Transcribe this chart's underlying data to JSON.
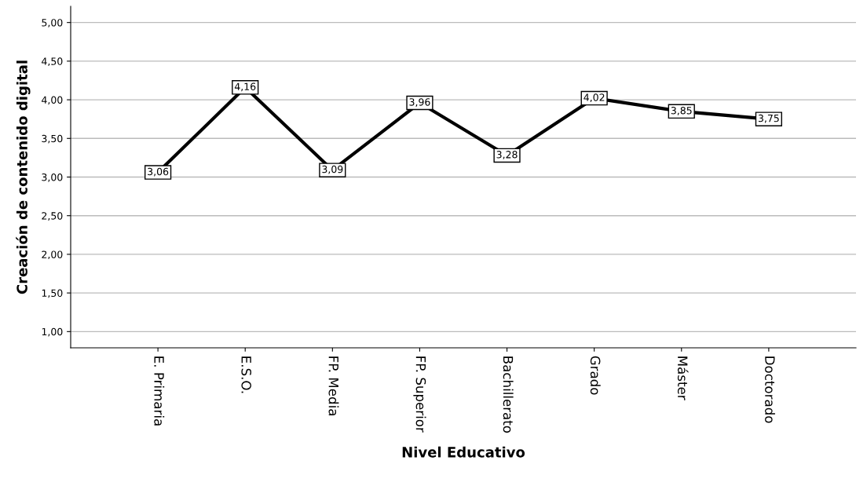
{
  "chart_data": {
    "type": "line",
    "xlabel": "Nivel Educativo",
    "ylabel": "Creación de contenido digital",
    "categories": [
      "E. Primaria",
      "E.S.O.",
      "FP. Media",
      "FP. Superior",
      "Bachillerato",
      "Grado",
      "Máster",
      "Doctorado"
    ],
    "series": [
      {
        "color": "#000000",
        "values": [
          3.06,
          4.16,
          3.09,
          3.96,
          3.28,
          4.02,
          3.85,
          3.75
        ],
        "value_labels": [
          "3,06",
          "4,16",
          "3,09",
          "3,96",
          "3,28",
          "4,02",
          "3,85",
          "3,75"
        ]
      }
    ],
    "ylim": [
      0.79,
      5.21
    ],
    "yticks": [
      {
        "value": 1,
        "label": "1,00"
      },
      {
        "value": 1.5,
        "label": "1,50"
      },
      {
        "value": 2,
        "label": "2,00"
      },
      {
        "value": 2.5,
        "label": "2,50"
      },
      {
        "value": 3,
        "label": "3,00"
      },
      {
        "value": 3.5,
        "label": "3,50"
      },
      {
        "value": 4,
        "label": "4,00"
      },
      {
        "value": 4.5,
        "label": "4,50"
      },
      {
        "value": 5,
        "label": "5,00"
      }
    ],
    "grid": "y",
    "marker": "square",
    "line_style": "solid",
    "legend": false
  }
}
